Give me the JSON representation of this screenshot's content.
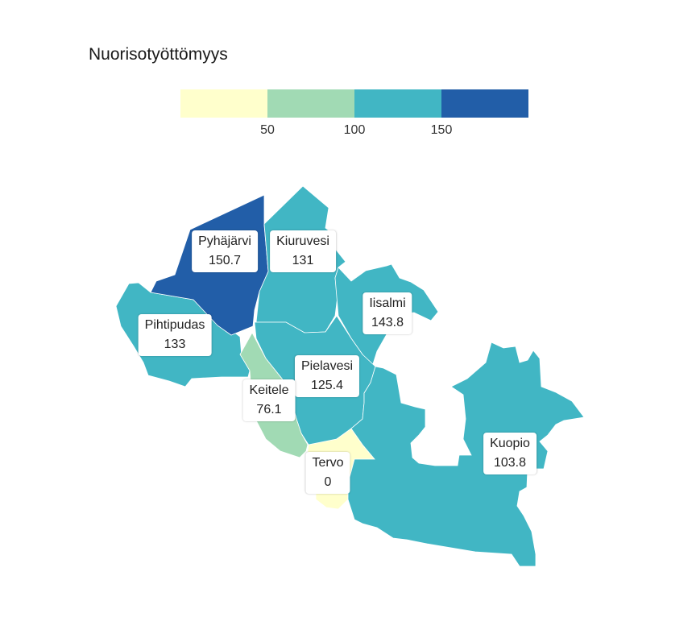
{
  "title": "Nuorisotyöttömyys",
  "legend": {
    "colors": [
      "#ffffcc",
      "#a1dab4",
      "#41b6c4",
      "#225ea8"
    ],
    "ticks": [
      "50",
      "100",
      "150"
    ]
  },
  "regions": [
    {
      "name": "Pyhäjärvi",
      "value": "150.7",
      "color": "#225ea8"
    },
    {
      "name": "Kiuruvesi",
      "value": "131",
      "color": "#41b6c4"
    },
    {
      "name": "Iisalmi",
      "value": "143.8",
      "color": "#41b6c4"
    },
    {
      "name": "Pihtipudas",
      "value": "133",
      "color": "#41b6c4"
    },
    {
      "name": "Pielavesi",
      "value": "125.4",
      "color": "#41b6c4"
    },
    {
      "name": "Keitele",
      "value": "76.1",
      "color": "#a1dab4"
    },
    {
      "name": "Tervo",
      "value": "0",
      "color": "#ffffcc"
    },
    {
      "name": "Kuopio",
      "value": "103.8",
      "color": "#41b6c4"
    }
  ]
}
